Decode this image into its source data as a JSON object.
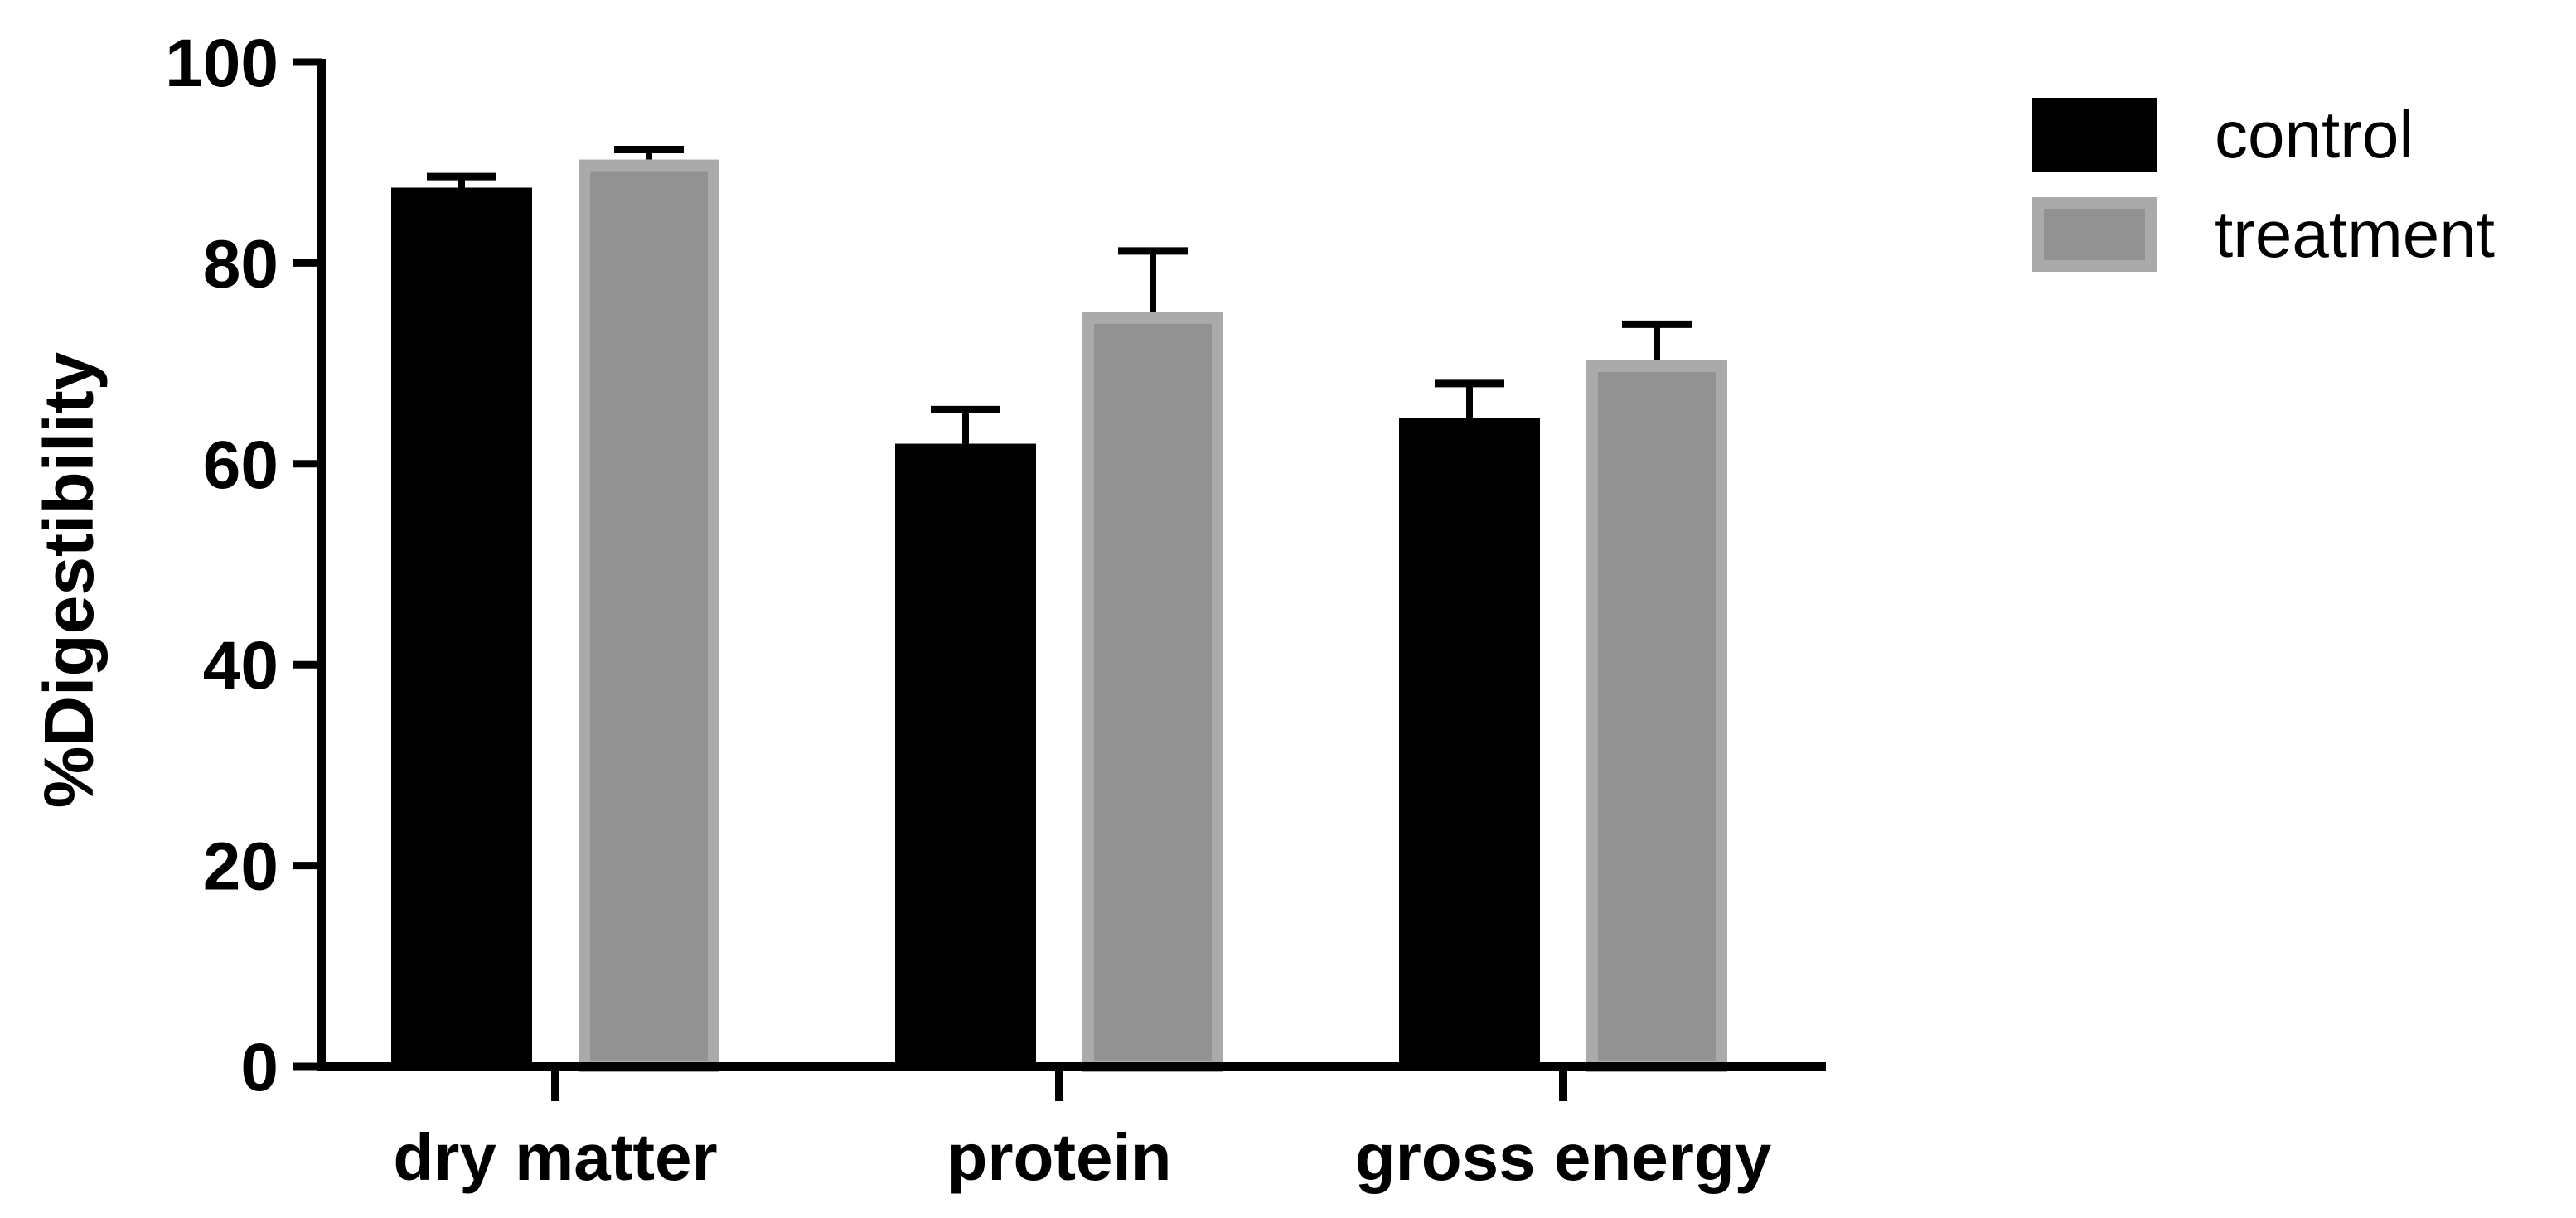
{
  "chart_data": {
    "type": "bar",
    "title": "",
    "xlabel": "",
    "ylabel": "%Digestibility",
    "ylim": [
      0,
      100
    ],
    "yticks": [
      0,
      20,
      40,
      60,
      80,
      100
    ],
    "categories": [
      "dry matter",
      "protein",
      "gross energy"
    ],
    "series": [
      {
        "name": "control",
        "color": "#000000",
        "values": [
          87.5,
          62,
          64.6
        ],
        "errors": [
          1.1,
          3.4,
          3.4
        ]
      },
      {
        "name": "treatment",
        "color": "#929292",
        "edge_color": "#aaaaaa",
        "values": [
          90.3,
          75.1,
          70.3
        ],
        "errors": [
          1.0,
          6.1,
          3.6
        ]
      }
    ],
    "legend": "right",
    "grid": false
  }
}
